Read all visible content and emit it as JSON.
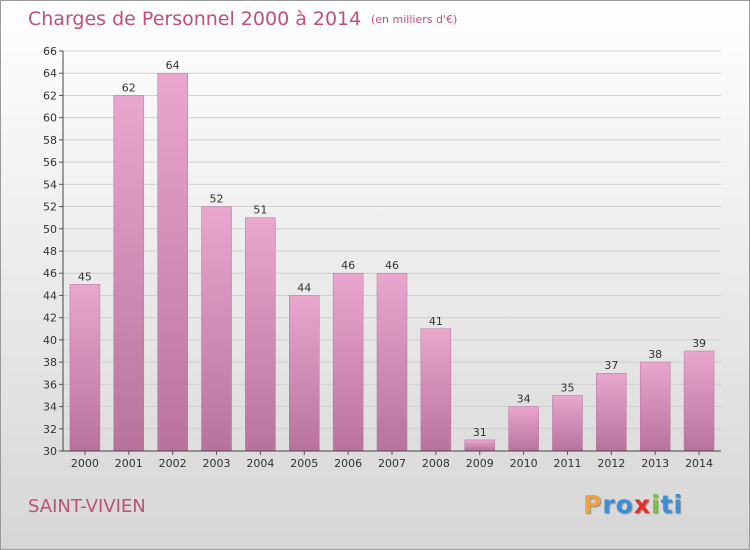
{
  "header": {
    "title": "Charges de Personnel 2000 à 2014",
    "subtitle": "(en milliers d'€)"
  },
  "footer": {
    "commune": "SAINT-VIVIEN",
    "logo": {
      "letters": [
        "P",
        "r",
        "o",
        "x",
        "i",
        "t",
        "i"
      ],
      "colors": [
        "#f2a13c",
        "#3a8fd6",
        "#3a8fd6",
        "#e0312b",
        "#7cc242",
        "#3a8fd6",
        "#3a8fd6"
      ]
    }
  },
  "chart_data": {
    "type": "bar",
    "categories": [
      "2000",
      "2001",
      "2002",
      "2003",
      "2004",
      "2005",
      "2006",
      "2007",
      "2008",
      "2009",
      "2010",
      "2011",
      "2012",
      "2013",
      "2014"
    ],
    "values": [
      45,
      62,
      64,
      52,
      51,
      44,
      46,
      46,
      41,
      31,
      34,
      35,
      37,
      38,
      39
    ],
    "data_labels": [
      "45",
      "62",
      "64",
      "52",
      "51",
      "44",
      "46",
      "46",
      "41",
      "31",
      "34",
      "35",
      "37",
      "38",
      "39"
    ],
    "ylim": [
      30,
      66
    ],
    "yticks": [
      "30",
      "32",
      "34",
      "36",
      "38",
      "40",
      "42",
      "44",
      "46",
      "48",
      "50",
      "52",
      "54",
      "56",
      "58",
      "60",
      "62",
      "64",
      "66"
    ],
    "grid": true,
    "bar_color": "#d98fbb",
    "bar_color_dark": "#b8739c"
  }
}
